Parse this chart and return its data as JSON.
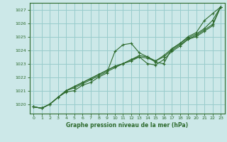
{
  "bg_color": "#cce8e8",
  "plot_bg_color": "#cce8e8",
  "grid_color": "#99cccc",
  "line_color": "#2d6a2d",
  "xlabel": "Graphe pression niveau de la mer (hPa)",
  "xlim": [
    -0.5,
    23.5
  ],
  "ylim": [
    1019.3,
    1027.5
  ],
  "yticks": [
    1020,
    1021,
    1022,
    1023,
    1024,
    1025,
    1026,
    1027
  ],
  "xticks": [
    0,
    1,
    2,
    3,
    4,
    5,
    6,
    7,
    8,
    9,
    10,
    11,
    12,
    13,
    14,
    15,
    16,
    17,
    18,
    19,
    20,
    21,
    22,
    23
  ],
  "series1_x": [
    0,
    1,
    2,
    3,
    4,
    5,
    6,
    7,
    8,
    9,
    10,
    11,
    12,
    13,
    14,
    15,
    16,
    17,
    18,
    19,
    20,
    21,
    22,
    23
  ],
  "series1_y": [
    1019.8,
    1019.7,
    1020.0,
    1020.5,
    1020.9,
    1021.0,
    1021.4,
    1021.6,
    1022.0,
    1022.3,
    1023.9,
    1024.4,
    1024.5,
    1023.8,
    1023.5,
    1023.1,
    1023.0,
    1024.1,
    1024.5,
    1025.0,
    1025.3,
    1026.2,
    1026.7,
    1027.2
  ],
  "series2_x": [
    0,
    1,
    2,
    3,
    4,
    5,
    6,
    7,
    8,
    9,
    10,
    11,
    12,
    13,
    14,
    15,
    16,
    17,
    18,
    19,
    20,
    21,
    22,
    23
  ],
  "series2_y": [
    1019.8,
    1019.7,
    1020.0,
    1020.5,
    1021.0,
    1021.3,
    1021.6,
    1021.9,
    1022.2,
    1022.5,
    1022.8,
    1023.0,
    1023.3,
    1023.6,
    1023.5,
    1023.2,
    1023.6,
    1024.1,
    1024.5,
    1024.9,
    1025.2,
    1025.6,
    1026.2,
    1027.2
  ],
  "series3_x": [
    0,
    1,
    2,
    3,
    4,
    5,
    6,
    7,
    8,
    9,
    10,
    11,
    12,
    13,
    14,
    15,
    16,
    17,
    18,
    19,
    20,
    21,
    22,
    23
  ],
  "series3_y": [
    1019.8,
    1019.7,
    1020.0,
    1020.5,
    1021.0,
    1021.3,
    1021.6,
    1021.9,
    1022.2,
    1022.5,
    1022.8,
    1023.0,
    1023.3,
    1023.5,
    1023.4,
    1023.2,
    1023.5,
    1024.0,
    1024.4,
    1024.8,
    1025.1,
    1025.5,
    1025.9,
    1027.2
  ],
  "series4_x": [
    0,
    1,
    2,
    3,
    4,
    5,
    6,
    7,
    8,
    9,
    10,
    11,
    12,
    13,
    14,
    15,
    16,
    17,
    18,
    19,
    20,
    21,
    22,
    23
  ],
  "series4_y": [
    1019.8,
    1019.7,
    1020.0,
    1020.5,
    1021.0,
    1021.2,
    1021.5,
    1021.8,
    1022.1,
    1022.4,
    1022.7,
    1023.0,
    1023.2,
    1023.5,
    1023.0,
    1022.9,
    1023.3,
    1023.9,
    1024.3,
    1024.8,
    1025.0,
    1025.4,
    1025.8,
    1027.2
  ]
}
